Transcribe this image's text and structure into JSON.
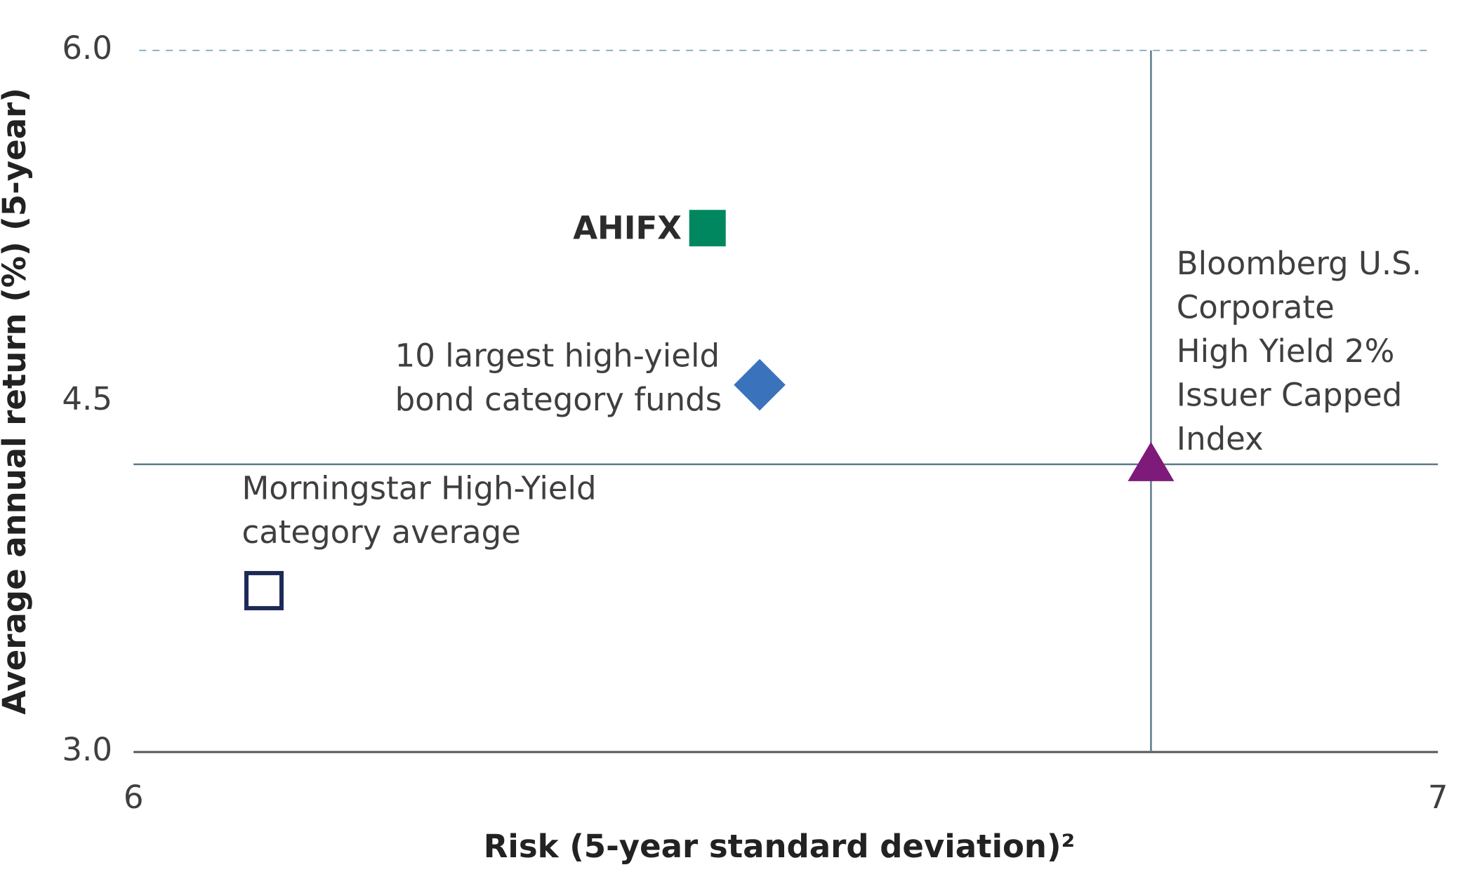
{
  "chart_data": {
    "type": "scatter",
    "xlabel": "Risk (5-year standard deviation)²",
    "ylabel": "Average annual return (%) (5-year)",
    "xlim": [
      6,
      7
    ],
    "ylim": [
      3.0,
      6.0
    ],
    "xticks": [
      6,
      7
    ],
    "yticks": [
      {
        "value": 3.0,
        "label": "3.0"
      },
      {
        "value": 4.5,
        "label": "4.5"
      },
      {
        "value": 6.0,
        "label": "6.0"
      }
    ],
    "series": [
      {
        "name": [
          "AHIFX"
        ],
        "color": "#00875f",
        "marker": "square",
        "x": [
          6.44
        ],
        "values": [
          5.24
        ]
      },
      {
        "name": [
          "10 largest high-yield",
          "bond category funds"
        ],
        "color": "#3a72bc",
        "marker": "diamond",
        "x": [
          6.48
        ],
        "values": [
          4.57
        ]
      },
      {
        "name": [
          "Bloomberg U.S.",
          "Corporate",
          "High Yield 2%",
          "Issuer Capped",
          "Index"
        ],
        "color": "#7d1a7a",
        "marker": "triangle",
        "x": [
          6.78
        ],
        "values": [
          4.23
        ]
      },
      {
        "name": [
          "Morningstar High-Yield",
          "category average"
        ],
        "color": "#1e2a56",
        "marker": "hollow-square",
        "x": [
          6.1
        ],
        "values": [
          3.69
        ]
      }
    ]
  }
}
